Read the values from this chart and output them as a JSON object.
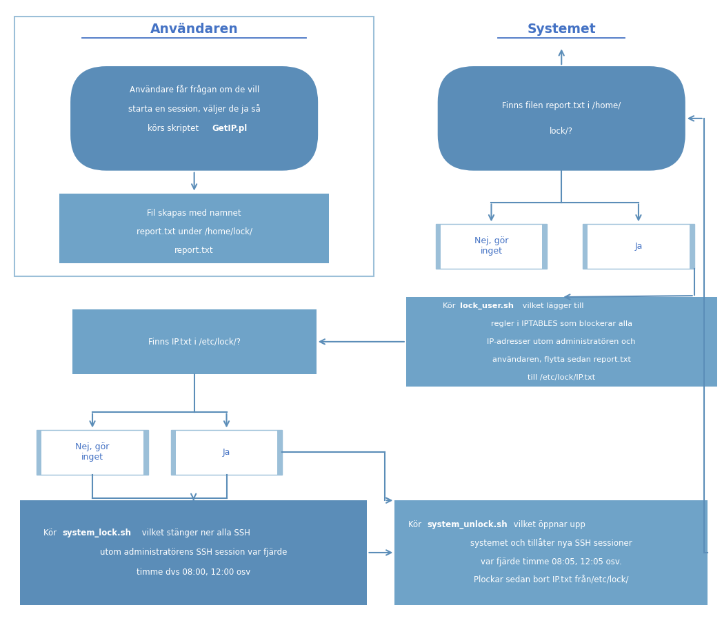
{
  "bg": "#ffffff",
  "dark": "#5b8db8",
  "med": "#6fa3c8",
  "lbdr": "#9bbfd8",
  "wht": "#ffffff",
  "blu": "#4472c4",
  "arc": "#5b8db8",
  "title_anvandaren": "Användaren",
  "title_systemet": "Systemet",
  "n1_line1": "Användare får frågan om de vill",
  "n1_line2": "starta en session, väljer de ja så",
  "n1_line3": "körs skriptet ",
  "n1_bold": "GetIP.pl",
  "n2_text": "Fil skapas med namnet\nreport.txt under /home/lock/\nreport.txt",
  "n3_text": "Finns filen report.txt i /home/\nlock/?",
  "n4a_text": "Nej, gör\ninget",
  "n4b_text": "Ja",
  "n5_pre": "Kör ",
  "n5_bold": "lock_user.sh",
  "n5_post": " vilket lägger till",
  "n5_l2": "regler i IPTABLES som blockerar alla",
  "n5_l3": "IP-adresser utom administratören och",
  "n5_l4": "användaren, flytta sedan report.txt",
  "n5_l5": "till /etc/lock/IP.txt",
  "n6_text": "Finns IP.txt i /etc/lock/?",
  "n7a_text": "Nej, gör\ninget",
  "n7b_text": "Ja",
  "n8_pre": "Kör ",
  "n8_bold": "system_lock.sh",
  "n8_post": " vilket stänger ner alla SSH",
  "n8_l2": "utom administratörens SSH session var fjärde",
  "n8_l3": "timme dvs 08:00, 12:00 osv",
  "n9_pre": "Kör ",
  "n9_bold": "system_unlock.sh",
  "n9_post": " vilket öppnar upp",
  "n9_l2": "systemet och tillåter nya SSH sessioner",
  "n9_l3": "var fjärde timme 08:05, 12:05 osv.",
  "n9_l4": "Plockar sedan bort IP.txt från/etc/lock/"
}
